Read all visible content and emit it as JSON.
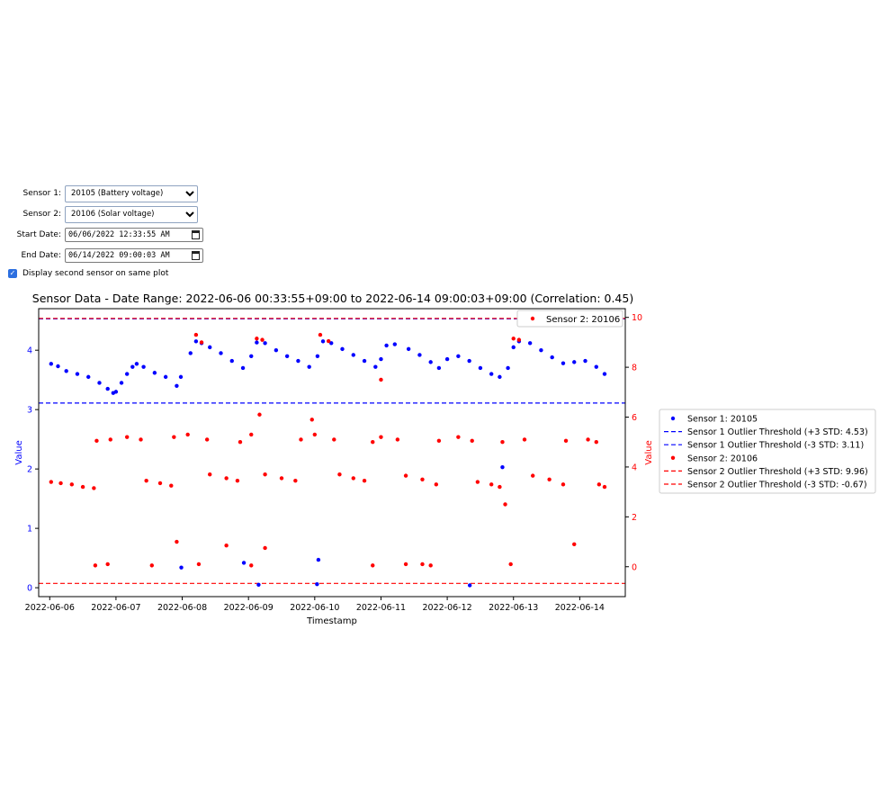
{
  "controls": {
    "sensor1_label": "Sensor 1:",
    "sensor1_value": "20105 (Battery voltage)",
    "sensor2_label": "Sensor 2:",
    "sensor2_value": "20106 (Solar voltage)",
    "start_label": "Start Date:",
    "start_value": "06/06/2022 12:33:55 AM",
    "end_label": "End Date:",
    "end_value": "06/14/2022 09:00:03 AM",
    "same_plot_label": "Display second sensor on same plot",
    "same_plot_checked": true
  },
  "chart_data": {
    "type": "scatter",
    "title": "Sensor Data - Date Range: 2022-06-06 00:33:55+09:00 to 2022-06-14 09:00:03+09:00 (Correlation: 0.45)",
    "xlabel": "Timestamp",
    "ylabel_left": "Value",
    "ylabel_right": "Value",
    "x_ticks": [
      "2022-06-06",
      "2022-06-07",
      "2022-06-08",
      "2022-06-09",
      "2022-06-10",
      "2022-06-11",
      "2022-06-12",
      "2022-06-13",
      "2022-06-14"
    ],
    "y_left_ticks": [
      0,
      1,
      2,
      3,
      4
    ],
    "y_right_ticks": [
      0,
      2,
      4,
      6,
      8,
      10
    ],
    "xlim": [
      "2022-06-05T20:00",
      "2022-06-14T16:30"
    ],
    "ylim_left": [
      -0.15,
      4.7
    ],
    "ylim_right": [
      -1.2,
      10.35
    ],
    "grid": false,
    "legend_inside": "top-right",
    "legend_outside": "right",
    "colors": {
      "sensor1": "#0000ff",
      "sensor2": "#ff0000"
    },
    "series": [
      {
        "name": "Sensor 1: 20105",
        "axis": "left",
        "points": [
          [
            "2022-06-06T00:30",
            3.77
          ],
          [
            "2022-06-06T03:00",
            3.73
          ],
          [
            "2022-06-06T06:00",
            3.65
          ],
          [
            "2022-06-06T10:00",
            3.6
          ],
          [
            "2022-06-06T14:00",
            3.55
          ],
          [
            "2022-06-06T18:00",
            3.45
          ],
          [
            "2022-06-06T21:00",
            3.35
          ],
          [
            "2022-06-07T00:00",
            3.3
          ],
          [
            "2022-06-07T02:00",
            3.45
          ],
          [
            "2022-06-07T04:00",
            3.6
          ],
          [
            "2022-06-07T06:00",
            3.72
          ],
          [
            "2022-06-07T07:30",
            3.77
          ],
          [
            "2022-06-07T10:00",
            3.72
          ],
          [
            "2022-06-07T14:00",
            3.62
          ],
          [
            "2022-06-07T18:00",
            3.55
          ],
          [
            "2022-06-07T22:00",
            3.4
          ],
          [
            "2022-06-07T23:30",
            3.55
          ],
          [
            "2022-06-08T03:00",
            3.95
          ],
          [
            "2022-06-08T05:00",
            4.15
          ],
          [
            "2022-06-08T07:00",
            4.12
          ],
          [
            "2022-06-08T10:00",
            4.05
          ],
          [
            "2022-06-08T14:00",
            3.95
          ],
          [
            "2022-06-08T18:00",
            3.82
          ],
          [
            "2022-06-08T22:00",
            3.7
          ],
          [
            "2022-06-09T01:00",
            3.9
          ],
          [
            "2022-06-09T03:00",
            4.13
          ],
          [
            "2022-06-09T06:00",
            4.12
          ],
          [
            "2022-06-09T10:00",
            4.0
          ],
          [
            "2022-06-09T14:00",
            3.9
          ],
          [
            "2022-06-09T18:00",
            3.82
          ],
          [
            "2022-06-09T22:00",
            3.72
          ],
          [
            "2022-06-10T01:00",
            3.9
          ],
          [
            "2022-06-10T03:00",
            4.15
          ],
          [
            "2022-06-10T06:00",
            4.12
          ],
          [
            "2022-06-10T10:00",
            4.02
          ],
          [
            "2022-06-10T14:00",
            3.92
          ],
          [
            "2022-06-10T18:00",
            3.82
          ],
          [
            "2022-06-10T22:00",
            3.72
          ],
          [
            "2022-06-11T00:00",
            3.85
          ],
          [
            "2022-06-11T02:00",
            4.08
          ],
          [
            "2022-06-11T05:00",
            4.1
          ],
          [
            "2022-06-11T10:00",
            4.02
          ],
          [
            "2022-06-11T14:00",
            3.92
          ],
          [
            "2022-06-11T18:00",
            3.8
          ],
          [
            "2022-06-11T21:00",
            3.7
          ],
          [
            "2022-06-12T00:00",
            3.85
          ],
          [
            "2022-06-12T04:00",
            3.9
          ],
          [
            "2022-06-12T08:00",
            3.82
          ],
          [
            "2022-06-12T12:00",
            3.7
          ],
          [
            "2022-06-12T16:00",
            3.6
          ],
          [
            "2022-06-12T19:00",
            3.55
          ],
          [
            "2022-06-12T22:00",
            3.7
          ],
          [
            "2022-06-13T00:00",
            4.05
          ],
          [
            "2022-06-13T02:00",
            4.15
          ],
          [
            "2022-06-13T06:00",
            4.12
          ],
          [
            "2022-06-13T10:00",
            4.0
          ],
          [
            "2022-06-13T14:00",
            3.88
          ],
          [
            "2022-06-13T18:00",
            3.78
          ],
          [
            "2022-06-13T22:00",
            3.8
          ],
          [
            "2022-06-14T02:00",
            3.82
          ],
          [
            "2022-06-14T06:00",
            3.72
          ],
          [
            "2022-06-14T09:00",
            3.6
          ],
          [
            "2022-06-06T23:00",
            3.28
          ],
          [
            "2022-06-07T23:40",
            0.34
          ],
          [
            "2022-06-08T22:20",
            0.42
          ],
          [
            "2022-06-09T03:40",
            0.05
          ],
          [
            "2022-06-10T01:20",
            0.47
          ],
          [
            "2022-06-10T00:50",
            0.06
          ],
          [
            "2022-06-12T08:10",
            0.04
          ],
          [
            "2022-06-12T20:00",
            2.03
          ]
        ]
      },
      {
        "name": "Sensor 2: 20106",
        "axis": "right",
        "points": [
          [
            "2022-06-06T00:30",
            3.4
          ],
          [
            "2022-06-06T04:00",
            3.35
          ],
          [
            "2022-06-06T08:00",
            3.3
          ],
          [
            "2022-06-06T12:00",
            3.2
          ],
          [
            "2022-06-06T16:00",
            3.15
          ],
          [
            "2022-06-06T17:00",
            5.05
          ],
          [
            "2022-06-06T22:00",
            5.1
          ],
          [
            "2022-06-07T04:00",
            5.2
          ],
          [
            "2022-06-07T09:00",
            5.1
          ],
          [
            "2022-06-07T11:00",
            3.45
          ],
          [
            "2022-06-07T16:00",
            3.35
          ],
          [
            "2022-06-07T20:00",
            3.25
          ],
          [
            "2022-06-07T21:00",
            5.2
          ],
          [
            "2022-06-08T02:00",
            5.3
          ],
          [
            "2022-06-08T05:00",
            9.3
          ],
          [
            "2022-06-08T07:00",
            9.0
          ],
          [
            "2022-06-08T09:00",
            5.1
          ],
          [
            "2022-06-08T10:00",
            3.7
          ],
          [
            "2022-06-08T16:00",
            3.55
          ],
          [
            "2022-06-08T20:00",
            3.45
          ],
          [
            "2022-06-08T21:00",
            5.0
          ],
          [
            "2022-06-09T01:00",
            5.3
          ],
          [
            "2022-06-09T03:00",
            9.15
          ],
          [
            "2022-06-09T05:00",
            9.1
          ],
          [
            "2022-06-09T04:00",
            6.1
          ],
          [
            "2022-06-09T06:00",
            3.7
          ],
          [
            "2022-06-09T12:00",
            3.55
          ],
          [
            "2022-06-09T17:00",
            3.45
          ],
          [
            "2022-06-09T19:00",
            5.1
          ],
          [
            "2022-06-10T00:00",
            5.3
          ],
          [
            "2022-06-10T02:00",
            9.3
          ],
          [
            "2022-06-10T05:00",
            9.05
          ],
          [
            "2022-06-10T07:00",
            5.1
          ],
          [
            "2022-06-10T09:00",
            3.7
          ],
          [
            "2022-06-10T14:00",
            3.55
          ],
          [
            "2022-06-10T18:00",
            3.45
          ],
          [
            "2022-06-10T21:00",
            5.0
          ],
          [
            "2022-06-11T00:00",
            5.2
          ],
          [
            "2022-06-11T06:00",
            5.1
          ],
          [
            "2022-06-11T09:00",
            3.65
          ],
          [
            "2022-06-11T15:00",
            3.5
          ],
          [
            "2022-06-11T20:00",
            3.3
          ],
          [
            "2022-06-11T21:00",
            5.05
          ],
          [
            "2022-06-12T04:00",
            5.2
          ],
          [
            "2022-06-12T09:00",
            5.05
          ],
          [
            "2022-06-12T11:00",
            3.4
          ],
          [
            "2022-06-12T16:00",
            3.3
          ],
          [
            "2022-06-12T19:00",
            3.2
          ],
          [
            "2022-06-12T20:00",
            5.0
          ],
          [
            "2022-06-13T00:00",
            9.15
          ],
          [
            "2022-06-13T02:00",
            9.1
          ],
          [
            "2022-06-13T04:00",
            5.1
          ],
          [
            "2022-06-13T07:00",
            3.65
          ],
          [
            "2022-06-13T13:00",
            3.5
          ],
          [
            "2022-06-13T18:00",
            3.3
          ],
          [
            "2022-06-13T19:00",
            5.05
          ],
          [
            "2022-06-14T03:00",
            5.1
          ],
          [
            "2022-06-14T06:00",
            5.0
          ],
          [
            "2022-06-14T07:00",
            3.3
          ],
          [
            "2022-06-14T09:00",
            3.2
          ],
          [
            "2022-06-06T16:30",
            0.05
          ],
          [
            "2022-06-06T21:00",
            0.1
          ],
          [
            "2022-06-07T13:00",
            0.05
          ],
          [
            "2022-06-07T22:00",
            1.0
          ],
          [
            "2022-06-08T06:00",
            0.1
          ],
          [
            "2022-06-08T16:00",
            0.85
          ],
          [
            "2022-06-09T01:00",
            0.05
          ],
          [
            "2022-06-09T06:00",
            0.75
          ],
          [
            "2022-06-09T23:00",
            5.9
          ],
          [
            "2022-06-10T21:00",
            0.05
          ],
          [
            "2022-06-11T09:00",
            0.1
          ],
          [
            "2022-06-11T15:00",
            0.1
          ],
          [
            "2022-06-11T18:00",
            0.05
          ],
          [
            "2022-06-12T21:00",
            2.5
          ],
          [
            "2022-06-12T23:00",
            0.1
          ],
          [
            "2022-06-13T22:00",
            0.9
          ],
          [
            "2022-06-11T00:00",
            7.5
          ]
        ]
      }
    ],
    "thresholds": [
      {
        "name": "Sensor 1 Outlier Threshold (+3 STD: 4.53)",
        "axis": "left",
        "value": 4.53,
        "color": "#0000ff"
      },
      {
        "name": "Sensor 1 Outlier Threshold (-3 STD: 3.11)",
        "axis": "left",
        "value": 3.11,
        "color": "#0000ff"
      },
      {
        "name": "Sensor 2 Outlier Threshold (+3 STD: 9.96)",
        "axis": "right",
        "value": 9.96,
        "color": "#ff0000"
      },
      {
        "name": "Sensor 2 Outlier Threshold (-3 STD: -0.67)",
        "axis": "right",
        "value": -0.67,
        "color": "#ff0000"
      }
    ],
    "legend_inside_entries": [
      "Sensor 2: 20106"
    ],
    "legend_outside_entries": [
      {
        "label": "Sensor 1: 20105",
        "kind": "dot",
        "color": "#0000ff"
      },
      {
        "label": "Sensor 1 Outlier Threshold (+3 STD: 4.53)",
        "kind": "dash",
        "color": "#0000ff"
      },
      {
        "label": "Sensor 1 Outlier Threshold (-3 STD: 3.11)",
        "kind": "dash",
        "color": "#0000ff"
      },
      {
        "label": "Sensor 2: 20106",
        "kind": "dot",
        "color": "#ff0000"
      },
      {
        "label": "Sensor 2 Outlier Threshold (+3 STD: 9.96)",
        "kind": "dash",
        "color": "#ff0000"
      },
      {
        "label": "Sensor 2 Outlier Threshold (-3 STD: -0.67)",
        "kind": "dash",
        "color": "#ff0000"
      }
    ]
  }
}
